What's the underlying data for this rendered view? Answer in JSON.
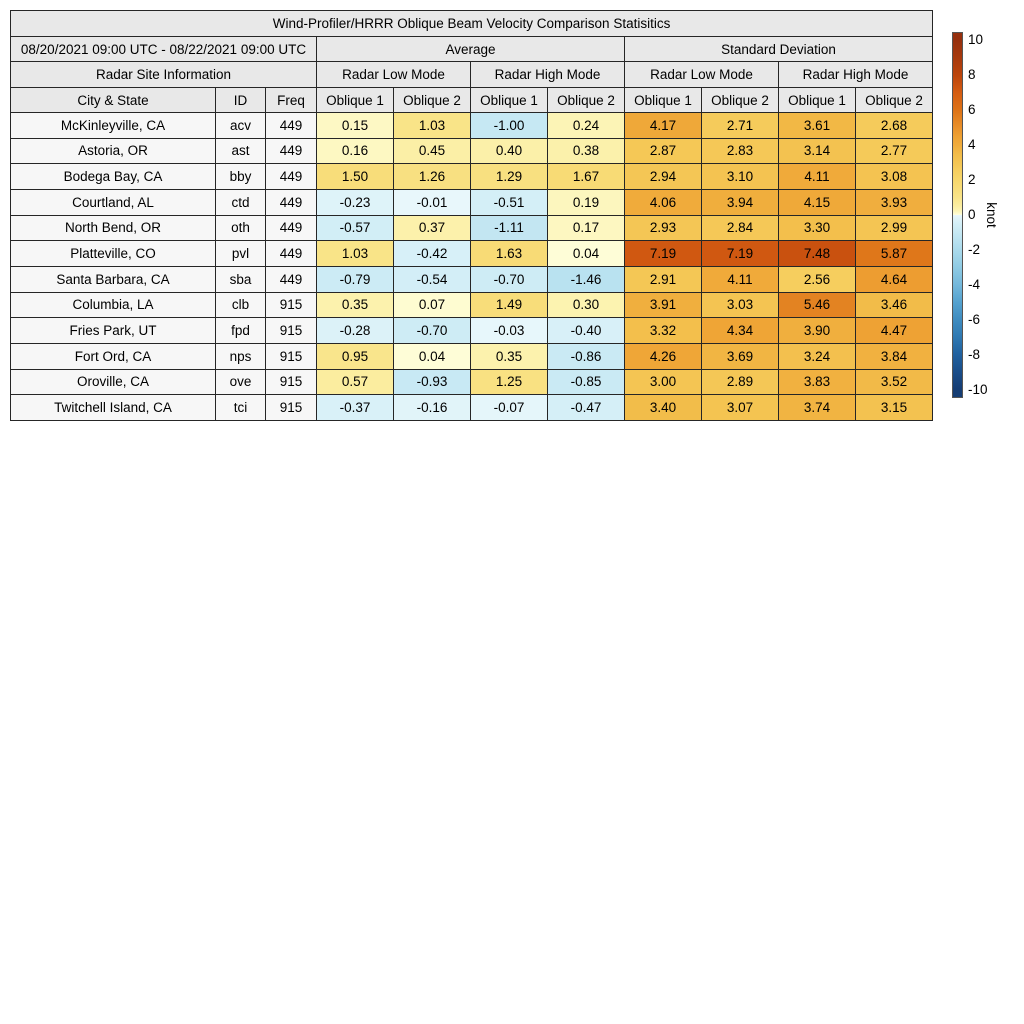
{
  "figure": {
    "title": "Wind-Profiler/HRRR Oblique Beam Velocity Comparison Statisitics",
    "period": "08/20/2021 09:00 UTC - 08/22/2021 09:00 UTC",
    "section_headers": {
      "site_info": "Radar Site Information",
      "average": "Average",
      "std_dev": "Standard Deviation"
    },
    "mode_headers": [
      "Radar Low Mode",
      "Radar High Mode",
      "Radar Low Mode",
      "Radar High Mode"
    ],
    "column_headers": {
      "city": "City & State",
      "id": "ID",
      "freq": "Freq"
    },
    "oblique_headers": [
      "Oblique 1",
      "Oblique 2",
      "Oblique 1",
      "Oblique 2",
      "Oblique 1",
      "Oblique 2",
      "Oblique 1",
      "Oblique 2"
    ]
  },
  "chart_data": {
    "type": "table",
    "title": "Wind-Profiler/HRRR Oblique Beam Velocity Comparison Statisitics",
    "period": "08/20/2021 09:00 UTC - 08/22/2021 09:00 UTC",
    "column_groups": [
      "Average / Radar Low Mode",
      "Average / Radar High Mode",
      "Standard Deviation / Radar Low Mode",
      "Standard Deviation / Radar High Mode"
    ],
    "value_columns": [
      "Oblique 1",
      "Oblique 2",
      "Oblique 1",
      "Oblique 2",
      "Oblique 1",
      "Oblique 2",
      "Oblique 1",
      "Oblique 2"
    ],
    "rows": [
      {
        "city": "McKinleyville, CA",
        "id": "acv",
        "freq": "449",
        "values": [
          0.15,
          1.03,
          -1.0,
          0.24,
          4.17,
          2.71,
          3.61,
          2.68
        ]
      },
      {
        "city": "Astoria, OR",
        "id": "ast",
        "freq": "449",
        "values": [
          0.16,
          0.45,
          0.4,
          0.38,
          2.87,
          2.83,
          3.14,
          2.77
        ]
      },
      {
        "city": "Bodega Bay, CA",
        "id": "bby",
        "freq": "449",
        "values": [
          1.5,
          1.26,
          1.29,
          1.67,
          2.94,
          3.1,
          4.11,
          3.08
        ]
      },
      {
        "city": "Courtland, AL",
        "id": "ctd",
        "freq": "449",
        "values": [
          -0.23,
          -0.01,
          -0.51,
          0.19,
          4.06,
          3.94,
          4.15,
          3.93
        ]
      },
      {
        "city": "North Bend, OR",
        "id": "oth",
        "freq": "449",
        "values": [
          -0.57,
          0.37,
          -1.11,
          0.17,
          2.93,
          2.84,
          3.3,
          2.99
        ]
      },
      {
        "city": "Platteville, CO",
        "id": "pvl",
        "freq": "449",
        "values": [
          1.03,
          -0.42,
          1.63,
          0.04,
          7.19,
          7.19,
          7.48,
          5.87
        ]
      },
      {
        "city": "Santa Barbara, CA",
        "id": "sba",
        "freq": "449",
        "values": [
          -0.79,
          -0.54,
          -0.7,
          -1.46,
          2.91,
          4.11,
          2.56,
          4.64
        ]
      },
      {
        "city": "Columbia, LA",
        "id": "clb",
        "freq": "915",
        "values": [
          0.35,
          0.07,
          1.49,
          0.3,
          3.91,
          3.03,
          5.46,
          3.46
        ]
      },
      {
        "city": "Fries Park, UT",
        "id": "fpd",
        "freq": "915",
        "values": [
          -0.28,
          -0.7,
          -0.03,
          -0.4,
          3.32,
          4.34,
          3.9,
          4.47
        ]
      },
      {
        "city": "Fort Ord, CA",
        "id": "nps",
        "freq": "915",
        "values": [
          0.95,
          0.04,
          0.35,
          -0.86,
          4.26,
          3.69,
          3.24,
          3.84
        ]
      },
      {
        "city": "Oroville, CA",
        "id": "ove",
        "freq": "915",
        "values": [
          0.57,
          -0.93,
          1.25,
          -0.85,
          3.0,
          2.89,
          3.83,
          3.52
        ]
      },
      {
        "city": "Twitchell Island, CA",
        "id": "tci",
        "freq": "915",
        "values": [
          -0.37,
          -0.16,
          -0.07,
          -0.47,
          3.4,
          3.07,
          3.74,
          3.15
        ]
      }
    ],
    "colorbar": {
      "label": "knot",
      "vmin": -10,
      "vmax": 10,
      "ticks": [
        10,
        8,
        6,
        4,
        2,
        0,
        -2,
        -4,
        -6,
        -8,
        -10
      ],
      "stops": [
        [
          -10,
          "#153D74"
        ],
        [
          -9,
          "#1A4E8A"
        ],
        [
          -8,
          "#20619F"
        ],
        [
          -7,
          "#2F79B2"
        ],
        [
          -6,
          "#3F8CC0"
        ],
        [
          -5,
          "#55A2CF"
        ],
        [
          -4,
          "#74B8DB"
        ],
        [
          -3,
          "#8FCBE4"
        ],
        [
          -2,
          "#AADAEC"
        ],
        [
          -1.5,
          "#B8E1F0"
        ],
        [
          -1,
          "#C6E8F3"
        ],
        [
          -0.5,
          "#D4EFF7"
        ],
        [
          -0.2,
          "#DFF3F9"
        ],
        [
          -0.01,
          "#E8F7FB"
        ],
        [
          0,
          "#FFFFDE"
        ],
        [
          0.1,
          "#FDFACC"
        ],
        [
          0.25,
          "#FCF4B4"
        ],
        [
          0.5,
          "#FBEEA2"
        ],
        [
          0.75,
          "#FAE996"
        ],
        [
          1,
          "#F9E489"
        ],
        [
          1.5,
          "#F8DD7A"
        ],
        [
          2,
          "#F7D76C"
        ],
        [
          2.5,
          "#F6CF60"
        ],
        [
          3,
          "#F4C553"
        ],
        [
          3.5,
          "#F2BB48"
        ],
        [
          4,
          "#F0AC3C"
        ],
        [
          4.5,
          "#EEA133"
        ],
        [
          5,
          "#E9912B"
        ],
        [
          6,
          "#DD7317"
        ],
        [
          7,
          "#D55D12"
        ],
        [
          8,
          "#BC450C"
        ],
        [
          9,
          "#A83A0D"
        ],
        [
          10,
          "#96300E"
        ]
      ]
    },
    "colors": {
      "header_bg": "#e8e8e8",
      "info_bg": "#f7f7f7",
      "border": "#262626"
    }
  }
}
